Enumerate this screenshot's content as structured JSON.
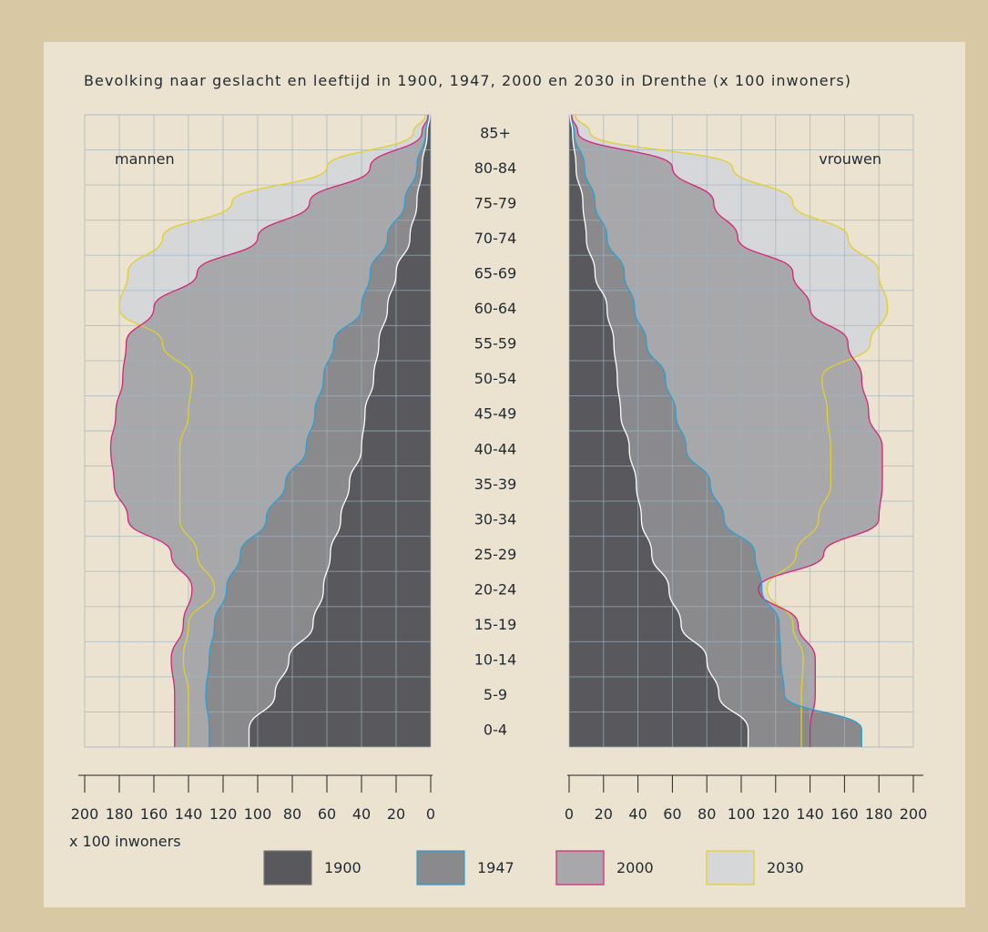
{
  "chart_data": {
    "type": "area",
    "title": "Bevolking naar geslacht en leeftijd in 1900, 1947, 2000 en 2030 in Drenthe (x 100 inwoners)",
    "left_label": "mannen",
    "right_label": "vrouwen",
    "xlabel": "x 100 inwoners",
    "xlim": [
      0,
      200
    ],
    "age_groups": [
      "0-4",
      "5-9",
      "10-14",
      "15-19",
      "20-24",
      "25-29",
      "30-34",
      "35-39",
      "40-44",
      "45-49",
      "50-54",
      "55-59",
      "60-64",
      "65-69",
      "70-74",
      "75-79",
      "80-84",
      "85+"
    ],
    "x_ticks_men": [
      "200",
      "180",
      "160",
      "140",
      "120",
      "100",
      "80",
      "60",
      "40",
      "20",
      "0"
    ],
    "x_ticks_women": [
      "0",
      "20",
      "40",
      "60",
      "80",
      "100",
      "120",
      "140",
      "160",
      "180",
      "200"
    ],
    "grid": true,
    "series": [
      {
        "name": "1900",
        "color": "#59585c",
        "men": [
          105,
          90,
          82,
          68,
          62,
          58,
          52,
          47,
          40,
          38,
          33,
          30,
          25,
          20,
          12,
          8,
          5,
          2
        ],
        "women": [
          104,
          87,
          80,
          65,
          58,
          48,
          42,
          39,
          35,
          30,
          28,
          26,
          22,
          15,
          10,
          8,
          4,
          2
        ]
      },
      {
        "name": "1947",
        "color": "#8a8a8c",
        "men": [
          128,
          130,
          128,
          125,
          118,
          110,
          95,
          84,
          72,
          67,
          62,
          56,
          40,
          35,
          25,
          15,
          8,
          3
        ],
        "women": [
          170,
          125,
          123,
          122,
          112,
          108,
          90,
          82,
          68,
          62,
          56,
          45,
          38,
          32,
          22,
          15,
          9,
          3
        ]
      },
      {
        "name": "2000",
        "color": "#a8a8aa",
        "men": [
          148,
          148,
          150,
          143,
          138,
          150,
          175,
          183,
          185,
          182,
          178,
          176,
          160,
          135,
          100,
          70,
          35,
          5
        ],
        "women": [
          140,
          143,
          143,
          133,
          110,
          148,
          180,
          182,
          182,
          174,
          170,
          162,
          140,
          130,
          98,
          84,
          60,
          5
        ]
      },
      {
        "name": "2030",
        "color": "#d6d7d8",
        "men": [
          140,
          140,
          143,
          140,
          125,
          135,
          145,
          145,
          145,
          140,
          138,
          155,
          180,
          175,
          155,
          115,
          60,
          10
        ],
        "women": [
          135,
          135,
          136,
          130,
          115,
          132,
          145,
          152,
          152,
          150,
          147,
          175,
          185,
          180,
          162,
          130,
          95,
          12
        ]
      }
    ]
  }
}
